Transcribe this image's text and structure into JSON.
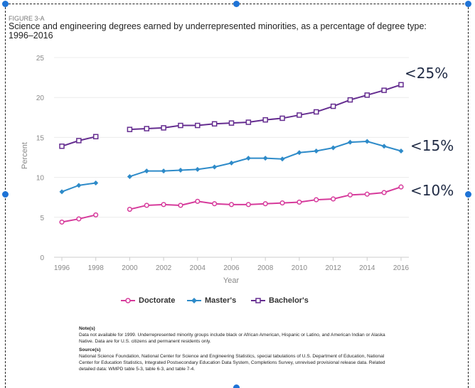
{
  "figure_label": "FIGURE 3-A",
  "title": "Science and engineering degrees earned by underrepresented minorities, as a percentage of degree type: 1996–2016",
  "chart_data": {
    "type": "line",
    "title": "Science and engineering degrees earned by underrepresented minorities, as a percentage of degree type: 1996–2016",
    "xlabel": "Year",
    "ylabel": "Percent",
    "ylim": [
      0,
      25
    ],
    "yticks": [
      0,
      5,
      10,
      15,
      20,
      25
    ],
    "xticks": [
      1996,
      1998,
      2000,
      2002,
      2004,
      2006,
      2008,
      2010,
      2012,
      2014,
      2016
    ],
    "grid": "horizontal",
    "legend_position": "bottom",
    "x": [
      1996,
      1997,
      1998,
      1999,
      2000,
      2001,
      2002,
      2003,
      2004,
      2005,
      2006,
      2007,
      2008,
      2009,
      2010,
      2011,
      2012,
      2013,
      2014,
      2015,
      2016
    ],
    "series": [
      {
        "name": "Doctorate",
        "color": "#d63a9b",
        "marker": "circle",
        "values": [
          4.4,
          4.8,
          5.3,
          null,
          6.0,
          6.5,
          6.6,
          6.5,
          7.0,
          6.7,
          6.6,
          6.6,
          6.7,
          6.8,
          6.9,
          7.2,
          7.3,
          7.8,
          7.9,
          8.1,
          8.8
        ]
      },
      {
        "name": "Master's",
        "color": "#2e8bc9",
        "marker": "diamond",
        "values": [
          8.2,
          9.0,
          9.3,
          null,
          10.1,
          10.8,
          10.8,
          10.9,
          11.0,
          11.3,
          11.8,
          12.4,
          12.4,
          12.3,
          13.1,
          13.3,
          13.7,
          14.4,
          14.5,
          13.9,
          13.3
        ]
      },
      {
        "name": "Bachelor's",
        "color": "#652d90",
        "marker": "square",
        "values": [
          13.9,
          14.6,
          15.1,
          null,
          16.0,
          16.1,
          16.2,
          16.5,
          16.5,
          16.7,
          16.8,
          16.9,
          17.2,
          17.4,
          17.8,
          18.2,
          18.9,
          19.7,
          20.3,
          20.9,
          21.6
        ]
      }
    ],
    "annotations": [
      "<25%",
      "<15%",
      "<10%"
    ]
  },
  "notes": {
    "note_heading": "Note(s)",
    "note_text": "Data not available for 1999. Underrepresented minority groups include black or African American, Hispanic or Latino, and American Indian or Alaska Native. Data are for U.S. citizens and permanent residents only.",
    "source_heading": "Source(s)",
    "source_text": "National Science Foundation, National Center for Science and Engineering Statistics, special tabulations of U.S. Department of Education, National Center for Education Statistics, Integrated Postsecondary Education Data System, Completions Survey, unrevised provisional release data. Related detailed data: WMPD table 5-3, table 6-3, and table 7-4."
  }
}
